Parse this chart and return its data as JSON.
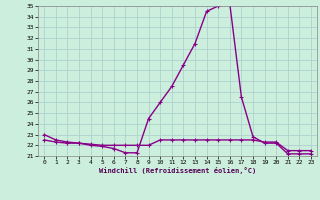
{
  "x": [
    0,
    1,
    2,
    3,
    4,
    5,
    6,
    7,
    8,
    9,
    10,
    11,
    12,
    13,
    14,
    15,
    16,
    17,
    18,
    19,
    20,
    21,
    22,
    23
  ],
  "windchill": [
    23.0,
    22.5,
    22.3,
    22.2,
    22.0,
    21.9,
    21.7,
    21.3,
    21.3,
    24.5,
    26.0,
    27.5,
    29.5,
    31.5,
    34.5,
    35.0,
    35.2,
    26.5,
    22.8,
    22.2,
    22.2,
    21.2,
    21.2,
    21.2
  ],
  "actual": [
    22.5,
    22.3,
    22.2,
    22.2,
    22.1,
    22.0,
    22.0,
    22.0,
    22.0,
    22.0,
    22.5,
    22.5,
    22.5,
    22.5,
    22.5,
    22.5,
    22.5,
    22.5,
    22.5,
    22.3,
    22.3,
    21.5,
    21.5,
    21.5
  ],
  "ylim": [
    21,
    35
  ],
  "yticks": [
    21,
    22,
    23,
    24,
    25,
    26,
    27,
    28,
    29,
    30,
    31,
    32,
    33,
    34,
    35
  ],
  "xticks": [
    0,
    1,
    2,
    3,
    4,
    5,
    6,
    7,
    8,
    9,
    10,
    11,
    12,
    13,
    14,
    15,
    16,
    17,
    18,
    19,
    20,
    21,
    22,
    23
  ],
  "xlabel": "Windchill (Refroidissement éolien,°C)",
  "line_color": "#880088",
  "bg_color": "#cceedd",
  "grid_color": "#aacccc",
  "marker": "+",
  "linewidth": 1.0,
  "markersize": 3.5,
  "figwidth": 3.2,
  "figheight": 2.0,
  "dpi": 100
}
